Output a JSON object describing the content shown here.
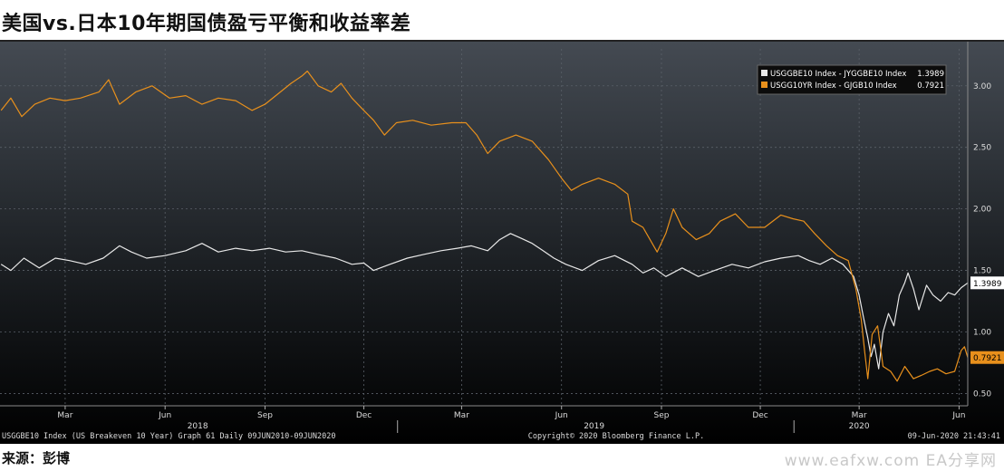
{
  "page": {
    "title": "美国vs.日本10年期国债盈亏平衡和收益率差",
    "source": "来源：彭博",
    "watermark": "www.eafxw.com  EA分享网"
  },
  "footer": {
    "left": "USGGBE10 Index (US Breakeven 10 Year) Graph 61  Daily 09JUN2010-09JUN2020",
    "center": "Copyright© 2020 Bloomberg Finance L.P.",
    "right": "09-Jun-2020 21:43:41"
  },
  "colors": {
    "white_series": "#e8e8e8",
    "orange_series": "#e8901c",
    "background_top": "#444a52",
    "background_bottom": "#000000"
  },
  "chart_data": {
    "type": "line",
    "ylim": [
      0.4,
      3.3
    ],
    "y_ticks": [
      "3.00",
      "2.50",
      "2.00",
      "1.50",
      "1.00",
      "0.50"
    ],
    "y_tick_values": [
      3.0,
      2.5,
      2.0,
      1.5,
      1.0,
      0.5
    ],
    "x_range": [
      "2017-12-31",
      "2020-06-09"
    ],
    "month_labels": [
      {
        "label": "Mar",
        "date": "2018-03-01"
      },
      {
        "label": "Jun",
        "date": "2018-06-01"
      },
      {
        "label": "Sep",
        "date": "2018-09-01"
      },
      {
        "label": "Dec",
        "date": "2018-12-01"
      },
      {
        "label": "Mar",
        "date": "2019-03-01"
      },
      {
        "label": "Jun",
        "date": "2019-06-01"
      },
      {
        "label": "Sep",
        "date": "2019-09-01"
      },
      {
        "label": "Dec",
        "date": "2019-12-01"
      },
      {
        "label": "Mar",
        "date": "2020-03-01"
      },
      {
        "label": "Jun",
        "date": "2020-06-01"
      }
    ],
    "year_labels": [
      {
        "label": "2018",
        "date": "2018-07-01"
      },
      {
        "label": "2019",
        "date": "2019-07-01"
      },
      {
        "label": "2020",
        "date": "2020-03-01"
      }
    ],
    "year_separators": [
      "2019-01-01",
      "2020-01-01"
    ],
    "legend_position": "top-right",
    "series": [
      {
        "name": "USGGBE10 Index - JYGGBE10 Index",
        "last_value": "1.3989",
        "color": "#e8e8e8",
        "points": [
          [
            "2018-01-01",
            1.55
          ],
          [
            "2018-01-10",
            1.5
          ],
          [
            "2018-01-22",
            1.6
          ],
          [
            "2018-02-05",
            1.52
          ],
          [
            "2018-02-20",
            1.6
          ],
          [
            "2018-03-05",
            1.58
          ],
          [
            "2018-03-20",
            1.55
          ],
          [
            "2018-04-05",
            1.6
          ],
          [
            "2018-04-20",
            1.7
          ],
          [
            "2018-05-01",
            1.65
          ],
          [
            "2018-05-15",
            1.6
          ],
          [
            "2018-06-01",
            1.62
          ],
          [
            "2018-06-20",
            1.66
          ],
          [
            "2018-07-05",
            1.72
          ],
          [
            "2018-07-20",
            1.65
          ],
          [
            "2018-08-05",
            1.68
          ],
          [
            "2018-08-20",
            1.66
          ],
          [
            "2018-09-05",
            1.68
          ],
          [
            "2018-09-20",
            1.65
          ],
          [
            "2018-10-05",
            1.66
          ],
          [
            "2018-10-20",
            1.63
          ],
          [
            "2018-11-05",
            1.6
          ],
          [
            "2018-11-20",
            1.55
          ],
          [
            "2018-12-01",
            1.56
          ],
          [
            "2018-12-10",
            1.5
          ],
          [
            "2018-12-25",
            1.55
          ],
          [
            "2019-01-10",
            1.6
          ],
          [
            "2019-01-25",
            1.63
          ],
          [
            "2019-02-10",
            1.66
          ],
          [
            "2019-02-25",
            1.68
          ],
          [
            "2019-03-10",
            1.7
          ],
          [
            "2019-03-25",
            1.66
          ],
          [
            "2019-04-05",
            1.75
          ],
          [
            "2019-04-15",
            1.8
          ],
          [
            "2019-04-25",
            1.76
          ],
          [
            "2019-05-05",
            1.72
          ],
          [
            "2019-05-15",
            1.66
          ],
          [
            "2019-05-25",
            1.6
          ],
          [
            "2019-06-05",
            1.55
          ],
          [
            "2019-06-20",
            1.5
          ],
          [
            "2019-07-05",
            1.58
          ],
          [
            "2019-07-20",
            1.62
          ],
          [
            "2019-08-05",
            1.55
          ],
          [
            "2019-08-15",
            1.48
          ],
          [
            "2019-08-25",
            1.52
          ],
          [
            "2019-09-05",
            1.45
          ],
          [
            "2019-09-20",
            1.52
          ],
          [
            "2019-10-05",
            1.45
          ],
          [
            "2019-10-20",
            1.5
          ],
          [
            "2019-11-05",
            1.55
          ],
          [
            "2019-11-20",
            1.52
          ],
          [
            "2019-12-05",
            1.57
          ],
          [
            "2019-12-20",
            1.6
          ],
          [
            "2020-01-05",
            1.62
          ],
          [
            "2020-01-15",
            1.58
          ],
          [
            "2020-01-25",
            1.55
          ],
          [
            "2020-02-05",
            1.6
          ],
          [
            "2020-02-15",
            1.55
          ],
          [
            "2020-02-25",
            1.45
          ],
          [
            "2020-03-01",
            1.3
          ],
          [
            "2020-03-05",
            1.12
          ],
          [
            "2020-03-09",
            0.95
          ],
          [
            "2020-03-12",
            0.8
          ],
          [
            "2020-03-15",
            0.9
          ],
          [
            "2020-03-19",
            0.7
          ],
          [
            "2020-03-23",
            1.0
          ],
          [
            "2020-03-28",
            1.15
          ],
          [
            "2020-04-02",
            1.05
          ],
          [
            "2020-04-07",
            1.3
          ],
          [
            "2020-04-12",
            1.4
          ],
          [
            "2020-04-15",
            1.48
          ],
          [
            "2020-04-20",
            1.35
          ],
          [
            "2020-04-25",
            1.18
          ],
          [
            "2020-05-02",
            1.38
          ],
          [
            "2020-05-08",
            1.3
          ],
          [
            "2020-05-15",
            1.25
          ],
          [
            "2020-05-22",
            1.32
          ],
          [
            "2020-05-28",
            1.3
          ],
          [
            "2020-06-03",
            1.36
          ],
          [
            "2020-06-09",
            1.3989
          ]
        ]
      },
      {
        "name": "USGG10YR Index - GJGB10 Index",
        "last_value": "0.7921",
        "color": "#e8901c",
        "points": [
          [
            "2018-01-01",
            2.8
          ],
          [
            "2018-01-10",
            2.9
          ],
          [
            "2018-01-20",
            2.75
          ],
          [
            "2018-02-01",
            2.85
          ],
          [
            "2018-02-15",
            2.9
          ],
          [
            "2018-03-01",
            2.88
          ],
          [
            "2018-03-15",
            2.9
          ],
          [
            "2018-04-01",
            2.95
          ],
          [
            "2018-04-10",
            3.05
          ],
          [
            "2018-04-20",
            2.85
          ],
          [
            "2018-05-05",
            2.95
          ],
          [
            "2018-05-20",
            3.0
          ],
          [
            "2018-06-05",
            2.9
          ],
          [
            "2018-06-20",
            2.92
          ],
          [
            "2018-07-05",
            2.85
          ],
          [
            "2018-07-20",
            2.9
          ],
          [
            "2018-08-05",
            2.88
          ],
          [
            "2018-08-20",
            2.8
          ],
          [
            "2018-09-01",
            2.85
          ],
          [
            "2018-09-15",
            2.95
          ],
          [
            "2018-09-25",
            3.02
          ],
          [
            "2018-10-05",
            3.08
          ],
          [
            "2018-10-10",
            3.12
          ],
          [
            "2018-10-20",
            3.0
          ],
          [
            "2018-11-01",
            2.95
          ],
          [
            "2018-11-10",
            3.02
          ],
          [
            "2018-11-20",
            2.9
          ],
          [
            "2018-12-01",
            2.8
          ],
          [
            "2018-12-10",
            2.72
          ],
          [
            "2018-12-20",
            2.6
          ],
          [
            "2018-12-31",
            2.7
          ],
          [
            "2019-01-15",
            2.72
          ],
          [
            "2019-02-01",
            2.68
          ],
          [
            "2019-02-20",
            2.7
          ],
          [
            "2019-03-05",
            2.7
          ],
          [
            "2019-03-15",
            2.6
          ],
          [
            "2019-03-25",
            2.45
          ],
          [
            "2019-04-05",
            2.55
          ],
          [
            "2019-04-20",
            2.6
          ],
          [
            "2019-05-05",
            2.55
          ],
          [
            "2019-05-20",
            2.4
          ],
          [
            "2019-06-01",
            2.25
          ],
          [
            "2019-06-10",
            2.15
          ],
          [
            "2019-06-20",
            2.2
          ],
          [
            "2019-07-05",
            2.25
          ],
          [
            "2019-07-20",
            2.2
          ],
          [
            "2019-08-01",
            2.12
          ],
          [
            "2019-08-05",
            1.9
          ],
          [
            "2019-08-15",
            1.85
          ],
          [
            "2019-08-28",
            1.65
          ],
          [
            "2019-09-05",
            1.8
          ],
          [
            "2019-09-12",
            2.0
          ],
          [
            "2019-09-20",
            1.85
          ],
          [
            "2019-10-03",
            1.75
          ],
          [
            "2019-10-15",
            1.8
          ],
          [
            "2019-10-25",
            1.9
          ],
          [
            "2019-11-08",
            1.96
          ],
          [
            "2019-11-20",
            1.85
          ],
          [
            "2019-12-05",
            1.85
          ],
          [
            "2019-12-20",
            1.95
          ],
          [
            "2019-12-31",
            1.92
          ],
          [
            "2020-01-10",
            1.9
          ],
          [
            "2020-01-20",
            1.8
          ],
          [
            "2020-01-31",
            1.7
          ],
          [
            "2020-02-10",
            1.62
          ],
          [
            "2020-02-20",
            1.58
          ],
          [
            "2020-02-27",
            1.35
          ],
          [
            "2020-03-03",
            1.1
          ],
          [
            "2020-03-06",
            0.85
          ],
          [
            "2020-03-09",
            0.62
          ],
          [
            "2020-03-13",
            0.98
          ],
          [
            "2020-03-18",
            1.05
          ],
          [
            "2020-03-23",
            0.72
          ],
          [
            "2020-03-30",
            0.68
          ],
          [
            "2020-04-05",
            0.6
          ],
          [
            "2020-04-12",
            0.72
          ],
          [
            "2020-04-20",
            0.62
          ],
          [
            "2020-04-28",
            0.65
          ],
          [
            "2020-05-05",
            0.68
          ],
          [
            "2020-05-12",
            0.7
          ],
          [
            "2020-05-20",
            0.66
          ],
          [
            "2020-05-28",
            0.68
          ],
          [
            "2020-06-03",
            0.85
          ],
          [
            "2020-06-06",
            0.88
          ],
          [
            "2020-06-09",
            0.7921
          ]
        ]
      }
    ]
  }
}
